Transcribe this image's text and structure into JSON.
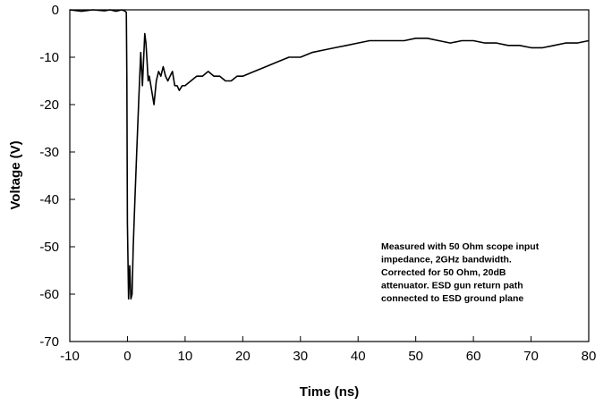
{
  "chart_data": {
    "type": "line",
    "xlabel": "Time (ns)",
    "ylabel": "Voltage (V)",
    "xlim": [
      -10,
      80
    ],
    "ylim": [
      -70,
      0
    ],
    "x_ticks": [
      -10,
      0,
      10,
      20,
      30,
      40,
      50,
      60,
      70,
      80
    ],
    "y_ticks": [
      0,
      -10,
      -20,
      -30,
      -40,
      -50,
      -60,
      -70
    ],
    "grid": false,
    "annotation": [
      "Measured with 50 Ohm scope input",
      "impedance, 2GHz bandwidth.",
      "Corrected for 50 Ohm, 20dB",
      "attenuator. ESD gun return path",
      "connected to ESD ground plane"
    ],
    "series": [
      {
        "color": "#000000",
        "x": [
          -10,
          -8,
          -6,
          -4,
          -3,
          -2,
          -1,
          -0.5,
          -0.2,
          -0.1,
          0,
          0.2,
          0.4,
          0.6,
          0.8,
          1,
          1.3,
          1.6,
          2,
          2.3,
          2.6,
          3,
          3.2,
          3.4,
          3.6,
          3.8,
          4.2,
          4.6,
          5,
          5.4,
          5.8,
          6.2,
          6.6,
          7,
          7.4,
          7.8,
          8.2,
          8.6,
          9,
          9.5,
          10,
          11,
          12,
          13,
          14,
          15,
          16,
          17,
          18,
          19,
          20,
          22,
          24,
          26,
          28,
          30,
          32,
          34,
          36,
          38,
          40,
          42,
          44,
          46,
          48,
          50,
          52,
          54,
          56,
          58,
          60,
          62,
          64,
          66,
          68,
          70,
          72,
          74,
          76,
          78,
          80
        ],
        "y": [
          0,
          -0.3,
          0,
          -0.2,
          0,
          -0.3,
          0,
          -0.2,
          -0.5,
          -15,
          -45,
          -61,
          -54,
          -61,
          -60,
          -50,
          -40,
          -30,
          -18,
          -9,
          -16,
          -5,
          -7,
          -11,
          -15,
          -14,
          -17,
          -20,
          -15,
          -13,
          -14,
          -12,
          -14,
          -15,
          -14,
          -13,
          -16,
          -16,
          -17,
          -16,
          -16,
          -15,
          -14,
          -14,
          -13,
          -14,
          -14,
          -15,
          -15,
          -14,
          -14,
          -13,
          -12,
          -11,
          -10,
          -10,
          -9,
          -8.5,
          -8,
          -7.5,
          -7,
          -6.5,
          -6.5,
          -6.5,
          -6.5,
          -6,
          -6,
          -6.5,
          -7,
          -6.5,
          -6.5,
          -7,
          -7,
          -7.5,
          -7.5,
          -8,
          -8,
          -7.5,
          -7,
          -7,
          -6.5
        ]
      }
    ]
  }
}
